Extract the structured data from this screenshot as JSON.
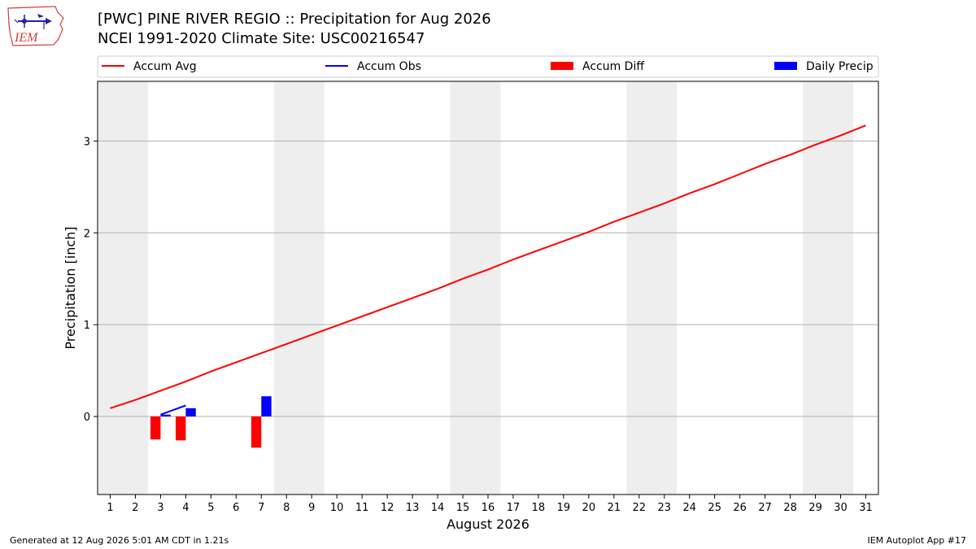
{
  "logo_text": "IEM",
  "colors": {
    "accum_avg": "#ff0000",
    "accum_obs": "#0000ff",
    "accum_diff": "#ff0000",
    "daily_precip": "#0000ff",
    "weekend_shade": "#eeeeee",
    "grid": "#b0b0b0"
  },
  "chart_data": {
    "type": "line",
    "title": "[PWC] PINE RIVER REGIO :: Precipitation for Aug 2026",
    "subtitle": "NCEI 1991-2020 Climate Site: USC00216547",
    "xlabel": "August 2026",
    "ylabel": "Precipitation [inch]",
    "xlim": [
      0.5,
      31.5
    ],
    "ylim": [
      -0.85,
      3.65
    ],
    "x_ticks": [
      1,
      2,
      3,
      4,
      5,
      6,
      7,
      8,
      9,
      10,
      11,
      12,
      13,
      14,
      15,
      16,
      17,
      18,
      19,
      20,
      21,
      22,
      23,
      24,
      25,
      26,
      27,
      28,
      29,
      30,
      31
    ],
    "y_ticks": [
      0,
      1,
      2,
      3
    ],
    "grid": "horizontal",
    "legend": {
      "placement": "top",
      "entries": [
        "Accum Avg",
        "Accum Obs",
        "Accum Diff",
        "Daily Precip"
      ]
    },
    "weekend_spans": [
      [
        0.5,
        2.5
      ],
      [
        7.5,
        9.5
      ],
      [
        14.5,
        16.5
      ],
      [
        21.5,
        23.5
      ],
      [
        28.5,
        30.5
      ]
    ],
    "series": [
      {
        "name": "Accum Avg",
        "kind": "line",
        "x": [
          1,
          2,
          3,
          4,
          5,
          6,
          7,
          8,
          9,
          10,
          11,
          12,
          13,
          14,
          15,
          16,
          17,
          18,
          19,
          20,
          21,
          22,
          23,
          24,
          25,
          26,
          27,
          28,
          29,
          30,
          31
        ],
        "values": [
          0.09,
          0.18,
          0.28,
          0.38,
          0.49,
          0.59,
          0.69,
          0.79,
          0.89,
          0.99,
          1.09,
          1.19,
          1.29,
          1.39,
          1.5,
          1.6,
          1.71,
          1.81,
          1.91,
          2.01,
          2.12,
          2.22,
          2.32,
          2.43,
          2.53,
          2.64,
          2.75,
          2.85,
          2.96,
          3.06,
          3.17
        ]
      },
      {
        "name": "Accum Obs",
        "kind": "line",
        "x": [
          3,
          4
        ],
        "values": [
          0.02,
          0.12
        ]
      },
      {
        "name": "Accum Diff",
        "kind": "bar",
        "x": [
          2.8,
          3.8,
          6.8
        ],
        "values": [
          -0.25,
          -0.26,
          -0.34
        ]
      },
      {
        "name": "Daily Precip",
        "kind": "bar",
        "x": [
          3.2,
          4.2,
          7.2
        ],
        "values": [
          0.02,
          0.09,
          0.22
        ]
      }
    ]
  },
  "footer": {
    "left": "Generated at 12 Aug 2026 5:01 AM CDT in 1.21s",
    "right": "IEM Autoplot App #17"
  }
}
